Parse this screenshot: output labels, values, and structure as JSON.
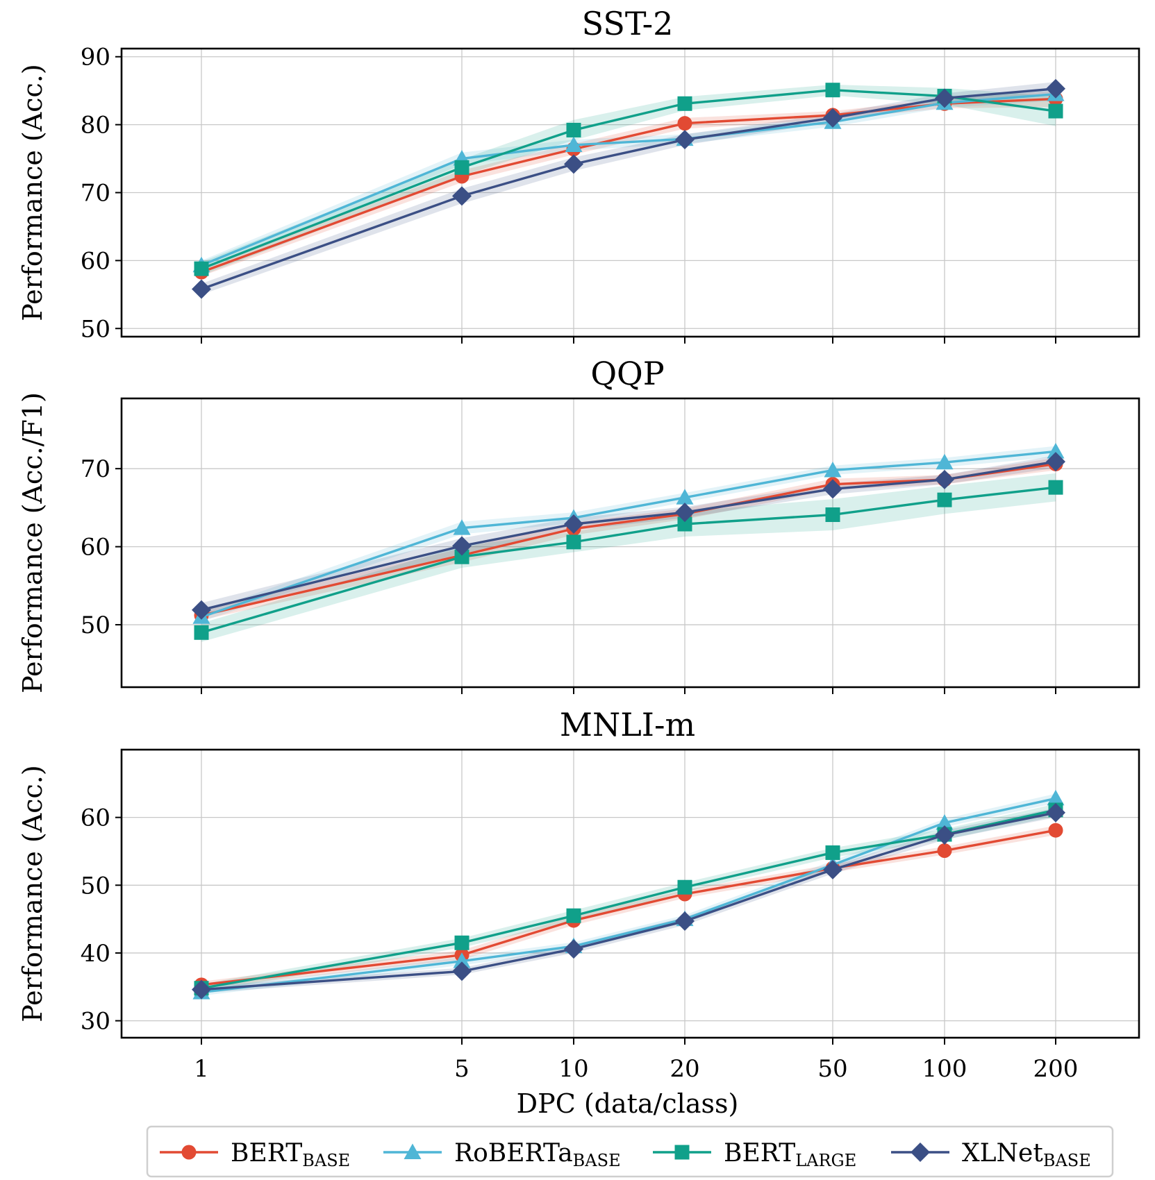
{
  "chart_data": {
    "type": "line",
    "x": [
      1,
      5,
      10,
      20,
      50,
      100,
      200
    ],
    "x_tick_labels": [
      "1",
      "5",
      "10",
      "20",
      "50",
      "100",
      "200"
    ],
    "x_scale": "log",
    "xlabel": "DPC (data/class)",
    "grid": true,
    "legend_placement": "bottom",
    "series_styles": [
      {
        "name": "BERTBASE",
        "label_main": "BERT",
        "label_sub": "BASE",
        "color": "#e24a33",
        "marker": "circle"
      },
      {
        "name": "RoBERTaBASE",
        "label_main": "RoBERTa",
        "label_sub": "BASE",
        "color": "#4fb6d6",
        "marker": "triangle"
      },
      {
        "name": "BERTLARGE",
        "label_main": "BERT",
        "label_sub": "LARGE",
        "color": "#10a08a",
        "marker": "square"
      },
      {
        "name": "XLNetBASE",
        "label_main": "XLNet",
        "label_sub": "BASE",
        "color": "#3b4f85",
        "marker": "diamond"
      }
    ],
    "panels": [
      {
        "title": "SST-2",
        "ylabel": "Performance (Acc.)",
        "ylim": [
          48.8,
          91.2
        ],
        "yticks": [
          50,
          60,
          70,
          80,
          90
        ],
        "series": [
          {
            "name": "BERTBASE",
            "values": [
              58.3,
              72.4,
              76.4,
              80.2,
              81.4,
              83.1,
              83.8
            ],
            "band": [
              0.6,
              0.9,
              0.8,
              0.8,
              0.6,
              0.7,
              1.2
            ]
          },
          {
            "name": "RoBERTaBASE",
            "values": [
              59.3,
              75.0,
              77.0,
              77.9,
              80.4,
              83.2,
              84.5
            ],
            "band": [
              0.7,
              0.9,
              0.8,
              0.7,
              0.7,
              0.7,
              1.0
            ]
          },
          {
            "name": "BERTLARGE",
            "values": [
              58.8,
              73.7,
              79.2,
              83.1,
              85.1,
              84.2,
              82.0
            ],
            "band": [
              1.0,
              1.2,
              1.5,
              1.0,
              0.8,
              1.2,
              2.2
            ]
          },
          {
            "name": "XLNetBASE",
            "values": [
              55.8,
              69.5,
              74.2,
              77.8,
              81.0,
              83.9,
              85.3
            ],
            "band": [
              0.8,
              1.1,
              1.0,
              0.8,
              0.6,
              0.7,
              1.0
            ]
          }
        ]
      },
      {
        "title": "QQP",
        "ylabel": "Performance (Acc./F1)",
        "ylim": [
          42.0,
          79.0
        ],
        "yticks": [
          50,
          60,
          70
        ],
        "series": [
          {
            "name": "BERTBASE",
            "values": [
              51.2,
              58.9,
              62.3,
              64.2,
              68.0,
              68.6,
              70.6
            ],
            "band": [
              0.6,
              0.9,
              0.8,
              0.7,
              0.7,
              0.6,
              0.8
            ]
          },
          {
            "name": "RoBERTaBASE",
            "values": [
              51.0,
              62.4,
              63.7,
              66.3,
              69.8,
              70.8,
              72.2
            ],
            "band": [
              0.6,
              0.8,
              0.7,
              0.6,
              0.6,
              0.6,
              0.7
            ]
          },
          {
            "name": "BERTLARGE",
            "values": [
              49.0,
              58.7,
              60.6,
              62.9,
              64.1,
              66.0,
              67.6
            ],
            "band": [
              1.2,
              1.4,
              1.3,
              1.6,
              2.0,
              1.8,
              1.8
            ]
          },
          {
            "name": "XLNetBASE",
            "values": [
              51.9,
              60.1,
              62.9,
              64.4,
              67.4,
              68.6,
              70.9
            ],
            "band": [
              0.9,
              1.0,
              0.8,
              0.7,
              0.7,
              0.6,
              0.8
            ]
          }
        ]
      },
      {
        "title": "MNLI-m",
        "ylabel": "Performance (Acc.)",
        "ylim": [
          27.5,
          70.0
        ],
        "yticks": [
          30,
          40,
          50,
          60
        ],
        "series": [
          {
            "name": "BERTBASE",
            "values": [
              35.3,
              39.7,
              44.8,
              48.7,
              52.5,
              55.1,
              58.1
            ],
            "band": [
              0.5,
              0.7,
              0.7,
              0.6,
              0.6,
              0.6,
              0.7
            ]
          },
          {
            "name": "RoBERTaBASE",
            "values": [
              34.2,
              38.8,
              41.0,
              45.0,
              53.0,
              59.2,
              62.8
            ],
            "band": [
              0.5,
              0.6,
              0.6,
              0.6,
              0.6,
              0.6,
              0.7
            ]
          },
          {
            "name": "BERTLARGE",
            "values": [
              34.8,
              41.5,
              45.5,
              49.7,
              54.8,
              57.5,
              61.1
            ],
            "band": [
              0.6,
              0.7,
              0.8,
              0.7,
              0.7,
              0.8,
              0.9
            ]
          },
          {
            "name": "XLNetBASE",
            "values": [
              34.6,
              37.3,
              40.6,
              44.7,
              52.3,
              57.4,
              60.7
            ],
            "band": [
              0.5,
              0.5,
              0.6,
              0.6,
              0.6,
              0.7,
              0.7
            ]
          }
        ]
      }
    ]
  }
}
